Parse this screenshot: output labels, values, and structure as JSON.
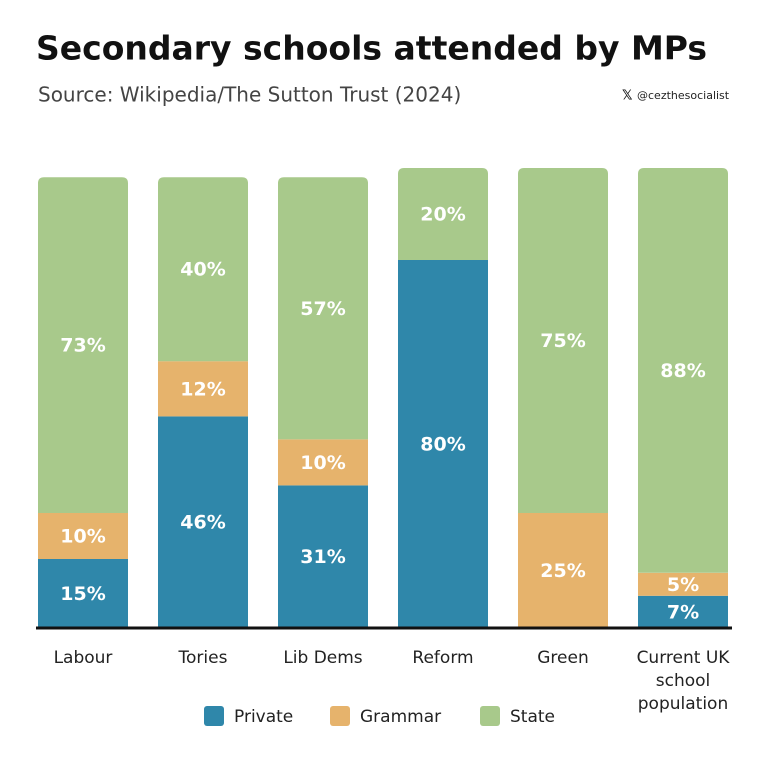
{
  "chart_data": {
    "type": "stacked-bar",
    "title": "Secondary schools attended by MPs",
    "subtitle": "Source: Wikipedia/The Sutton Trust (2024)",
    "credit": "@cezthesocialist",
    "categories": [
      "Labour",
      "Tories",
      "Lib Dems",
      "Reform",
      "Green",
      "Current UK school population"
    ],
    "ylim": [
      0,
      100
    ],
    "legend": "bottom",
    "series": [
      {
        "name": "Private",
        "color": "#2f87aa",
        "values": [
          15,
          46,
          31,
          80,
          0,
          7
        ],
        "value_labels": [
          "15%",
          "46%",
          "31%",
          "80%",
          null,
          "7%"
        ]
      },
      {
        "name": "Grammar",
        "color": "#e6b36c",
        "values": [
          10,
          12,
          10,
          0,
          25,
          5
        ],
        "value_labels": [
          "10%",
          "12%",
          "10%",
          null,
          "25%",
          "5%"
        ]
      },
      {
        "name": "State",
        "color": "#a8c98b",
        "values": [
          73,
          40,
          57,
          20,
          75,
          88
        ],
        "value_labels": [
          "73%",
          "40%",
          "57%",
          "20%",
          "75%",
          "88%"
        ]
      }
    ]
  }
}
